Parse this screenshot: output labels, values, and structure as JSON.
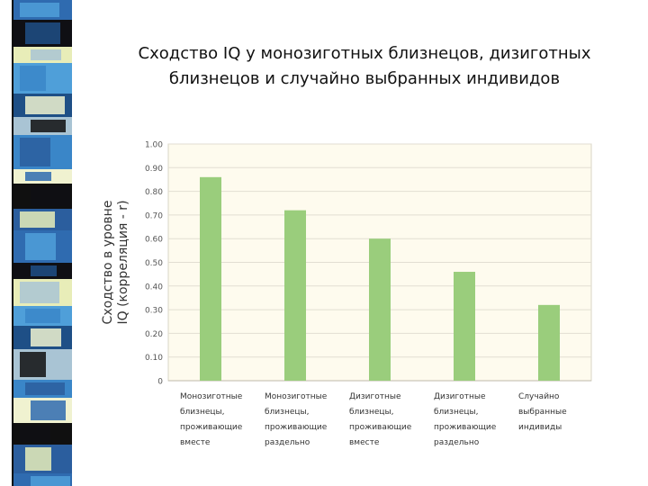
{
  "slide": {
    "title_line1": "Сходство IQ у монозиготных близнецов, дизиготных",
    "title_line2": "близнецов и случайно выбранных индивидов"
  },
  "colors": {
    "plot_background": "#FEFBEE",
    "bar": "#9ACD7C",
    "grid": "#E2DED2",
    "text": "#555555",
    "strip": [
      "#2F6BB0",
      "#0F0F14",
      "#E8EDB8",
      "#4F9FD9",
      "#1E4F86",
      "#A9C4D4",
      "#3A86C8",
      "#F0F2D0",
      "#101010",
      "#2B5E9E"
    ]
  },
  "chart_data": {
    "type": "bar",
    "ylabel_line1": "Сходство в уровне",
    "ylabel_line2": "IQ (корреляция - r)",
    "xlabel": "",
    "ylim": [
      0,
      1.0
    ],
    "yticks": [
      "0",
      "0.10",
      "0.20",
      "0.30",
      "0.40",
      "0.50",
      "0.60",
      "0.70",
      "0.80",
      "0.90",
      "1.00"
    ],
    "grid": true,
    "categories": [
      [
        "Монозиготные",
        "близнецы,",
        "проживающие",
        "вместе"
      ],
      [
        "Монозиготные",
        "близнецы,",
        "проживающие",
        "раздельно"
      ],
      [
        "Дизиготные",
        "близнецы,",
        "проживающие",
        "вместе"
      ],
      [
        "Дизиготные",
        "близнецы,",
        "проживающие",
        "раздельно"
      ],
      [
        "Случайно",
        "выбранные",
        "индивиды"
      ]
    ],
    "values": [
      0.86,
      0.72,
      0.6,
      0.46,
      0.32
    ]
  }
}
